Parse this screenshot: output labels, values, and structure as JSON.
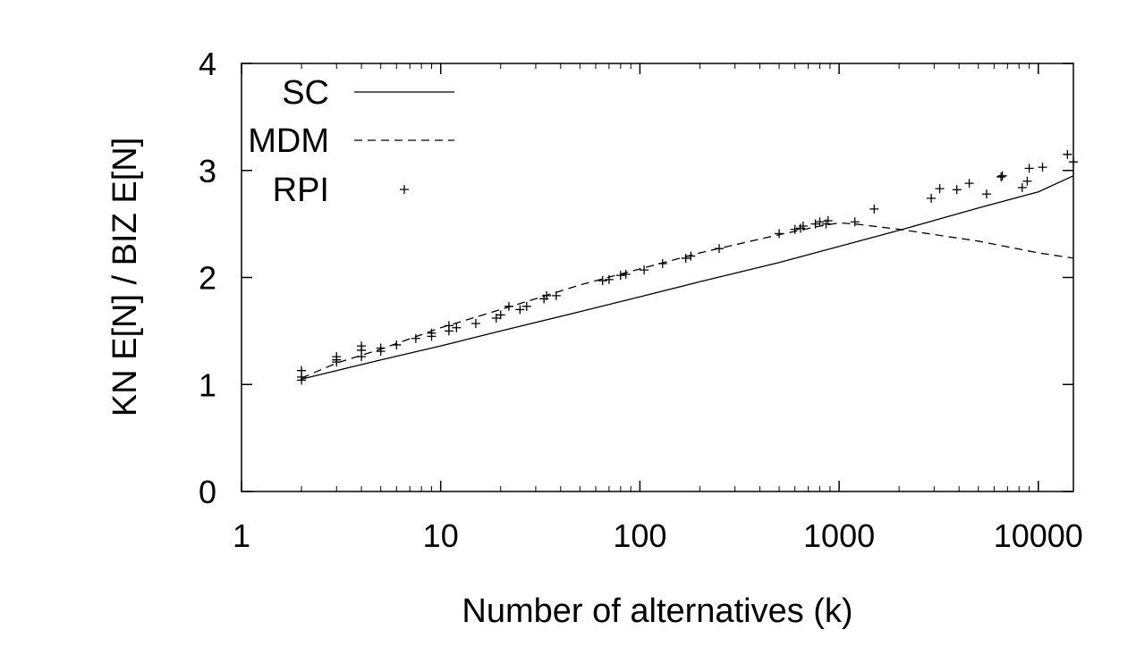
{
  "chart_data": {
    "type": "line",
    "xlabel": "Number of alternatives (k)",
    "ylabel": "KN E[N] / BIZ E[N]",
    "xscale": "log",
    "xlim": [
      1,
      15000
    ],
    "ylim": [
      0,
      4
    ],
    "xticks": [
      {
        "value": 1,
        "label": "1"
      },
      {
        "value": 10,
        "label": "10"
      },
      {
        "value": 100,
        "label": "100"
      },
      {
        "value": 1000,
        "label": "1000"
      },
      {
        "value": 10000,
        "label": "10000"
      }
    ],
    "yticks": [
      {
        "value": 0,
        "label": "0"
      },
      {
        "value": 1,
        "label": "1"
      },
      {
        "value": 2,
        "label": "2"
      },
      {
        "value": 3,
        "label": "3"
      },
      {
        "value": 4,
        "label": "4"
      }
    ],
    "grid": false,
    "legend_position": "top-left",
    "series": [
      {
        "name": "SC",
        "style": "solid",
        "x": [
          2,
          3,
          5,
          10,
          20,
          50,
          100,
          200,
          500,
          1000,
          2000,
          5000,
          10000,
          15000
        ],
        "y": [
          1.05,
          1.13,
          1.23,
          1.36,
          1.5,
          1.68,
          1.82,
          1.96,
          2.14,
          2.29,
          2.44,
          2.65,
          2.8,
          2.95
        ]
      },
      {
        "name": "MDM",
        "style": "dashed",
        "x": [
          2,
          3,
          5,
          10,
          20,
          50,
          100,
          200,
          500,
          800,
          1000,
          1200,
          2000,
          5000,
          10000,
          15000
        ],
        "y": [
          1.06,
          1.2,
          1.33,
          1.53,
          1.7,
          1.93,
          2.08,
          2.23,
          2.4,
          2.48,
          2.51,
          2.5,
          2.45,
          2.34,
          2.23,
          2.18
        ]
      },
      {
        "name": "RPI",
        "style": "markers",
        "marker": "+",
        "x": [
          2,
          2,
          2,
          3,
          3,
          3,
          4,
          4,
          4,
          5,
          5,
          6,
          7.5,
          9,
          9,
          11,
          11,
          12,
          15,
          19,
          20,
          22,
          25,
          27,
          33,
          34,
          38,
          65,
          70,
          80,
          85,
          105,
          130,
          170,
          180,
          250,
          500,
          600,
          640,
          660,
          760,
          800,
          860,
          880,
          1200,
          1500,
          2900,
          3200,
          3900,
          4500,
          5500,
          6500,
          6600,
          8300,
          8800,
          9000,
          10500,
          14000,
          15000
        ],
        "y": [
          1.04,
          1.07,
          1.13,
          1.21,
          1.23,
          1.26,
          1.26,
          1.32,
          1.36,
          1.31,
          1.34,
          1.37,
          1.43,
          1.45,
          1.48,
          1.5,
          1.55,
          1.53,
          1.57,
          1.62,
          1.65,
          1.73,
          1.7,
          1.73,
          1.8,
          1.83,
          1.83,
          1.97,
          1.98,
          2.02,
          2.03,
          2.07,
          2.13,
          2.18,
          2.2,
          2.27,
          2.41,
          2.45,
          2.46,
          2.48,
          2.5,
          2.52,
          2.5,
          2.53,
          2.52,
          2.64,
          2.74,
          2.83,
          2.82,
          2.88,
          2.78,
          2.94,
          2.95,
          2.84,
          2.9,
          3.02,
          3.03,
          3.15,
          3.08
        ]
      }
    ],
    "colors": {
      "axis": "#000000",
      "line": "#000000",
      "background": "#ffffff"
    }
  }
}
